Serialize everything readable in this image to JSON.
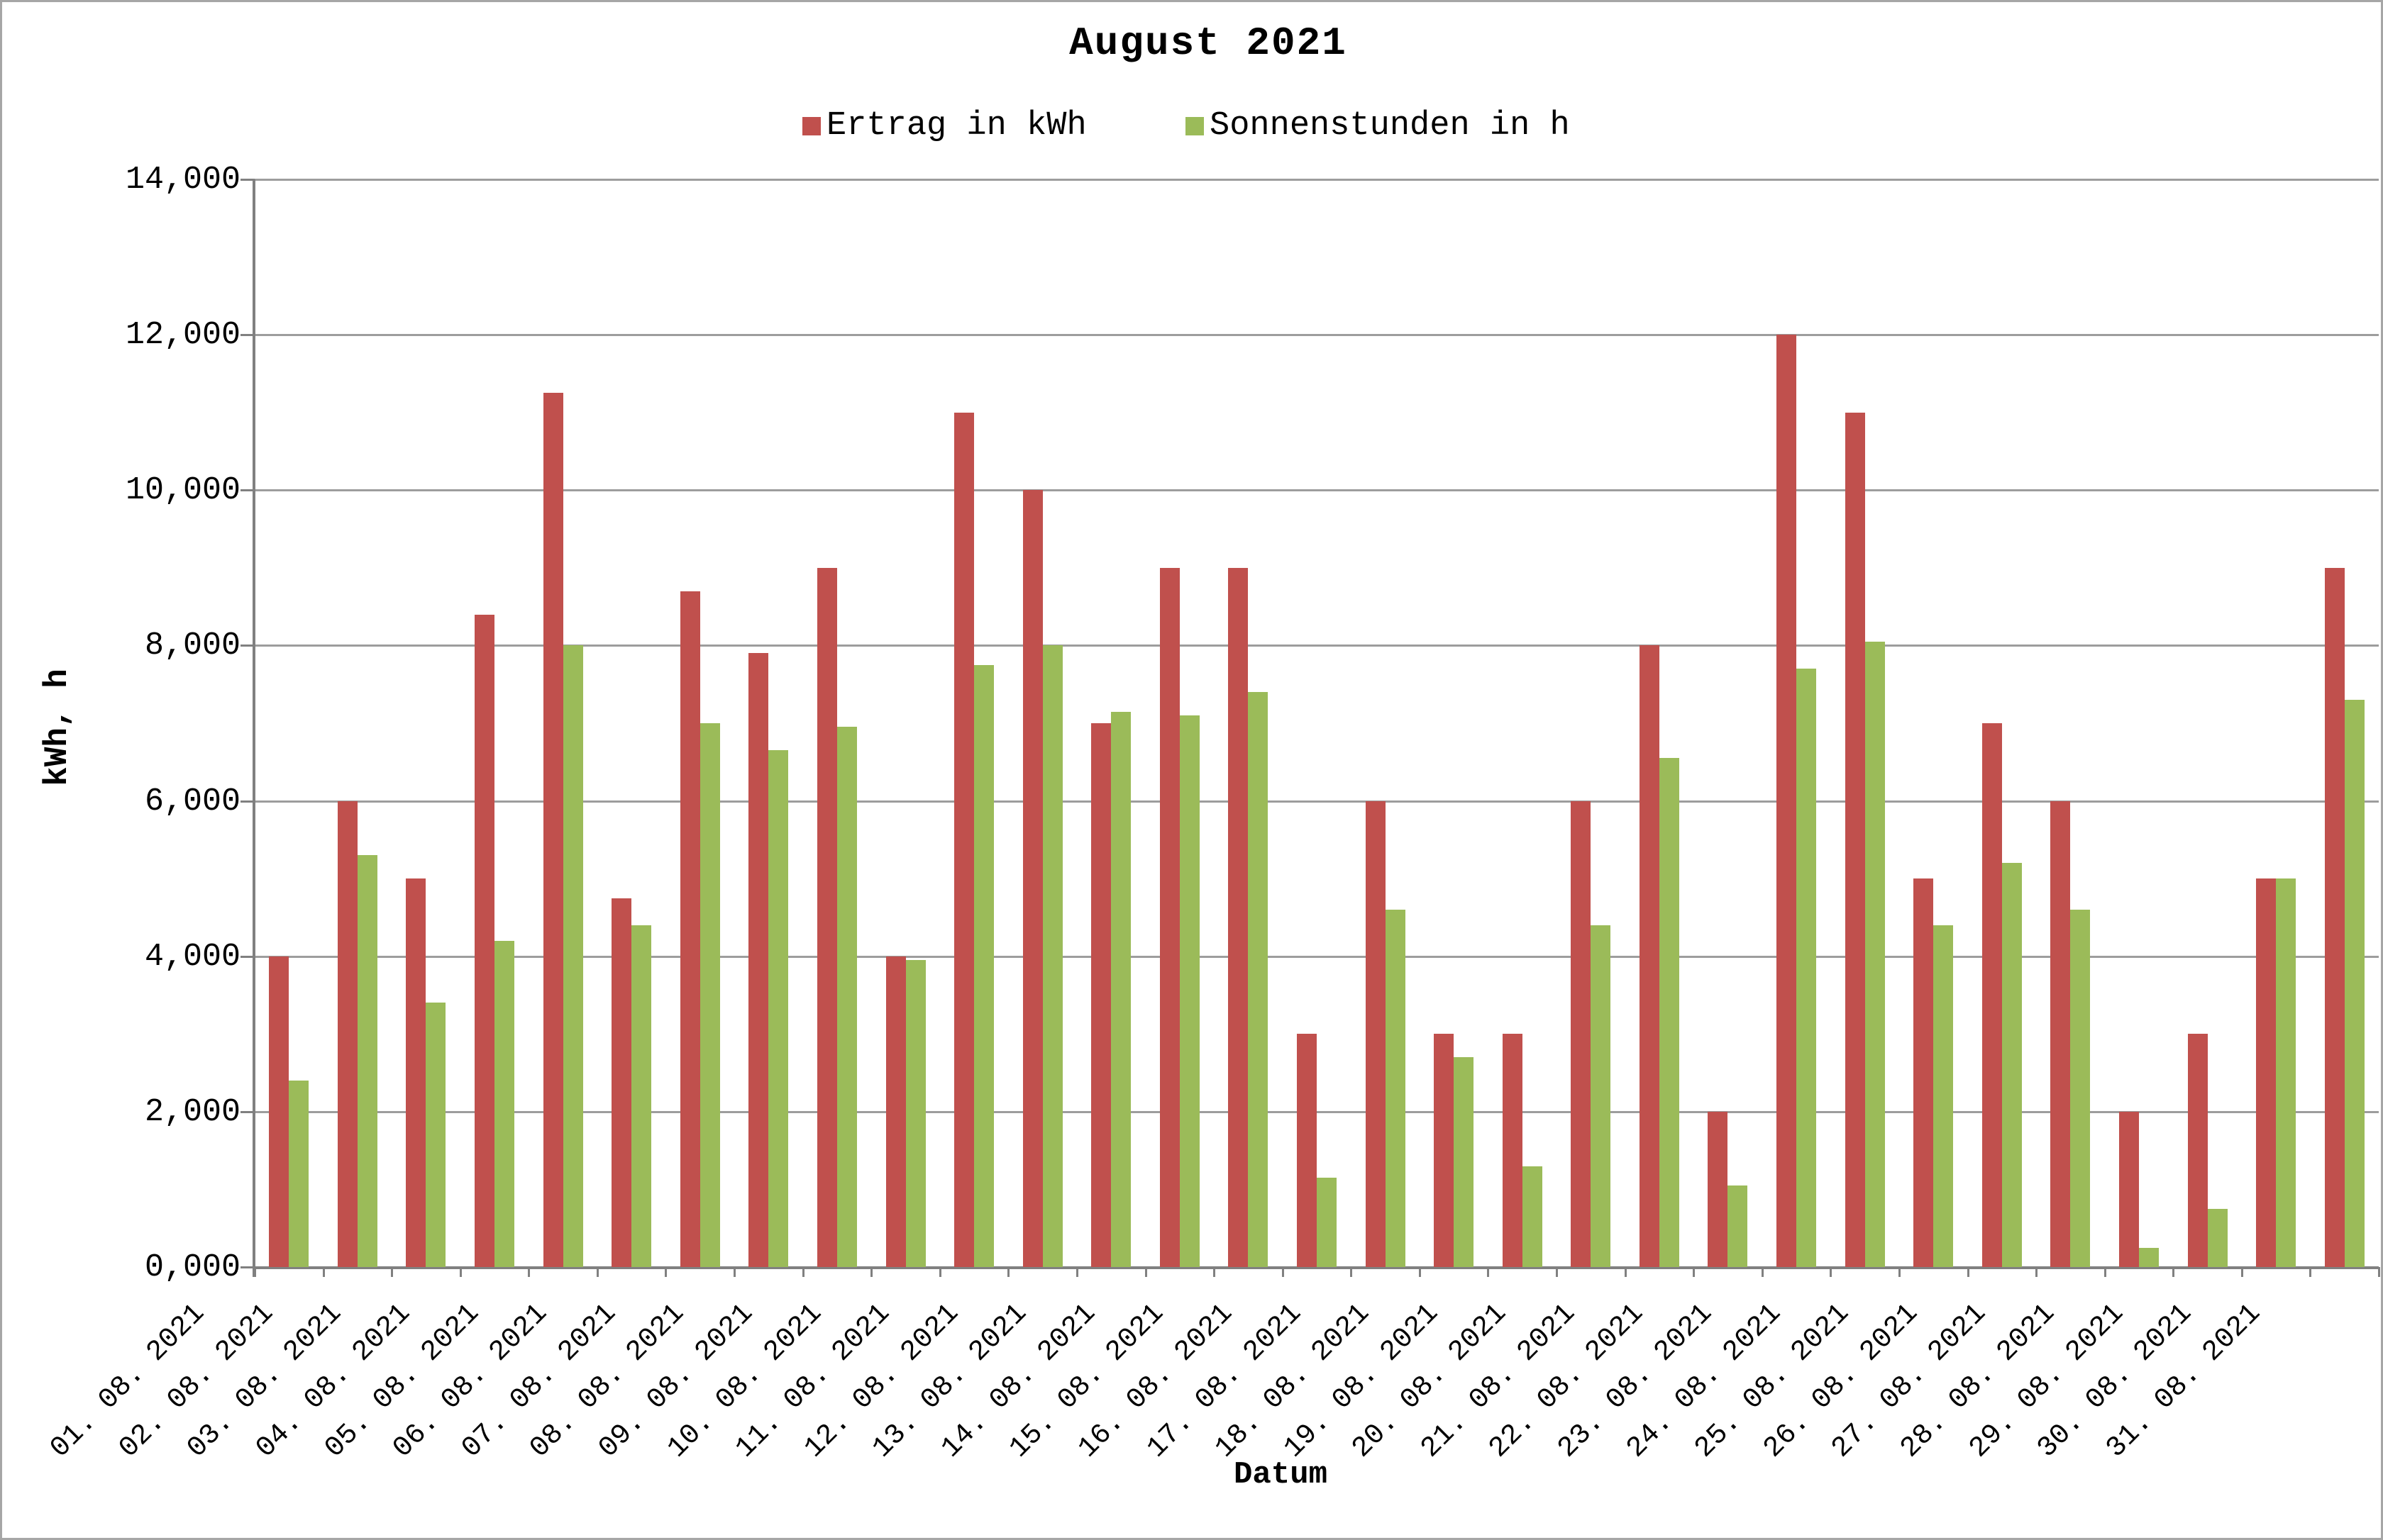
{
  "title": "August 2021",
  "legend": [
    {
      "label": "Ertrag in kWh",
      "color": "#C0504D"
    },
    {
      "label": "Sonnenstunden in h",
      "color": "#9BBB59"
    }
  ],
  "colors": {
    "ertrag": "#C0504D",
    "sonnenstunden": "#9BBB59",
    "gridline": "#9d9d9d",
    "axis": "#808080",
    "canvas_border": "#a6a6a6"
  },
  "chart_data": {
    "type": "bar",
    "title": "August 2021",
    "xlabel": "Datum",
    "ylabel": "kWh, h",
    "ylim": [
      0,
      14
    ],
    "grid": true,
    "legend_position": "top",
    "y_tick_labels": [
      "0,000",
      "2,000",
      "4,000",
      "6,000",
      "8,000",
      "10,000",
      "12,000",
      "14,000"
    ],
    "categories": [
      "01. 08. 2021",
      "02. 08. 2021",
      "03. 08. 2021",
      "04. 08. 2021",
      "05. 08. 2021",
      "06. 08. 2021",
      "07. 08. 2021",
      "08. 08. 2021",
      "09. 08. 2021",
      "10. 08. 2021",
      "11. 08. 2021",
      "12. 08. 2021",
      "13. 08. 2021",
      "14. 08. 2021",
      "15. 08. 2021",
      "16. 08. 2021",
      "17. 08. 2021",
      "18. 08. 2021",
      "19. 08. 2021",
      "20. 08. 2021",
      "21. 08. 2021",
      "22. 08. 2021",
      "23. 08. 2021",
      "24. 08. 2021",
      "25. 08. 2021",
      "26. 08. 2021",
      "27. 08. 2021",
      "28. 08. 2021",
      "29. 08. 2021",
      "30. 08. 2021",
      "31. 08. 2021"
    ],
    "series": [
      {
        "name": "Ertrag in kWh",
        "color": "#C0504D",
        "values": [
          4.0,
          6.0,
          5.0,
          8.4,
          11.25,
          4.75,
          8.7,
          7.9,
          9.0,
          4.0,
          11.0,
          10.0,
          7.0,
          9.0,
          9.0,
          3.0,
          6.0,
          3.0,
          3.0,
          6.0,
          8.0,
          2.0,
          12.0,
          11.0,
          5.0,
          7.0,
          6.0,
          2.0,
          3.0,
          5.0,
          9.0
        ]
      },
      {
        "name": "Sonnenstunden in h",
        "color": "#9BBB59",
        "values": [
          2.4,
          5.3,
          3.4,
          4.2,
          8.0,
          4.4,
          7.0,
          6.65,
          6.95,
          3.95,
          7.75,
          8.0,
          7.15,
          7.1,
          7.4,
          1.15,
          4.6,
          2.7,
          1.3,
          4.4,
          6.55,
          1.05,
          7.7,
          8.05,
          4.4,
          5.2,
          4.6,
          0.25,
          0.75,
          5.0,
          7.3
        ]
      }
    ]
  }
}
